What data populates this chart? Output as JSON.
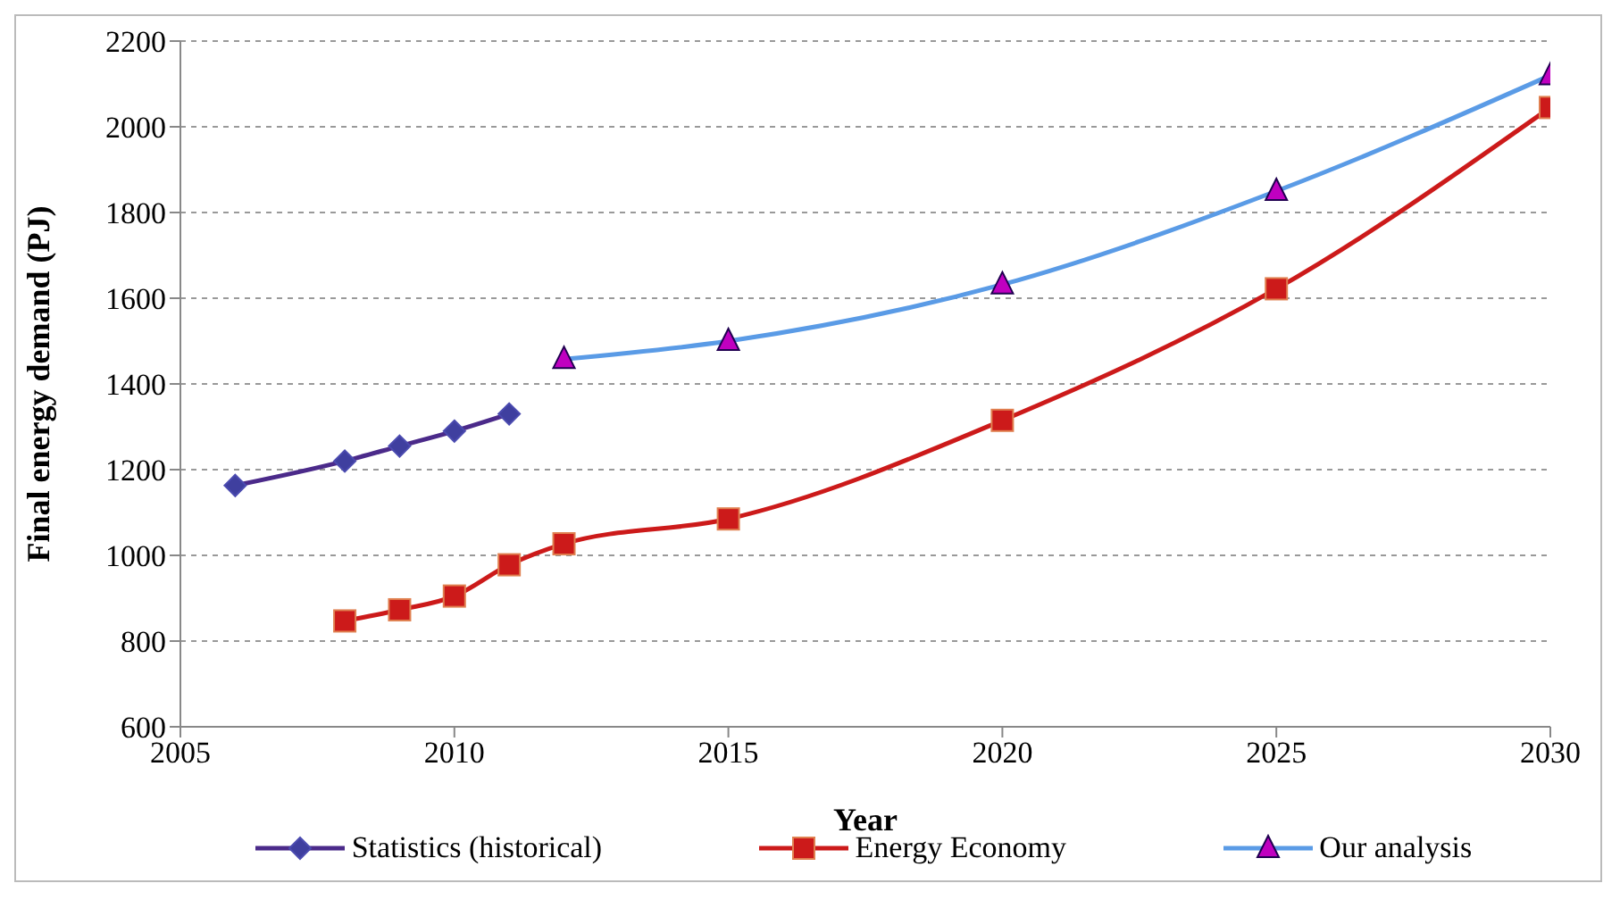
{
  "chart_data": {
    "type": "line",
    "xlabel": "Year",
    "ylabel": "Final energy demand (PJ)",
    "xlim": [
      2005,
      2030
    ],
    "xticks": [
      2005,
      2010,
      2015,
      2020,
      2025,
      2030
    ],
    "ylim": [
      600,
      2200
    ],
    "yticks": [
      600,
      800,
      1000,
      1200,
      1400,
      1600,
      1800,
      2000,
      2200
    ],
    "grid": "y",
    "legend": "bottom",
    "series": [
      {
        "name": "Statistics (historical)",
        "color": "#4b2a8a",
        "marker": "diamond",
        "x": [
          2006,
          2008,
          2009,
          2010,
          2011
        ],
        "values": [
          1163,
          1220,
          1255,
          1290,
          1330
        ]
      },
      {
        "name": "Energy Economy",
        "color": "#cc1a1a",
        "marker": "square",
        "x": [
          2008,
          2009,
          2010,
          2011,
          2012,
          2015,
          2020,
          2025,
          2030
        ],
        "values": [
          847,
          873,
          905,
          978,
          1027,
          1085,
          1315,
          1622,
          2045
        ]
      },
      {
        "name": "Our analysis",
        "color": "#5a9be6",
        "marker": "triangle",
        "x": [
          2012,
          2015,
          2020,
          2025,
          2030
        ],
        "values": [
          1458,
          1500,
          1632,
          1850,
          2120
        ]
      }
    ]
  }
}
